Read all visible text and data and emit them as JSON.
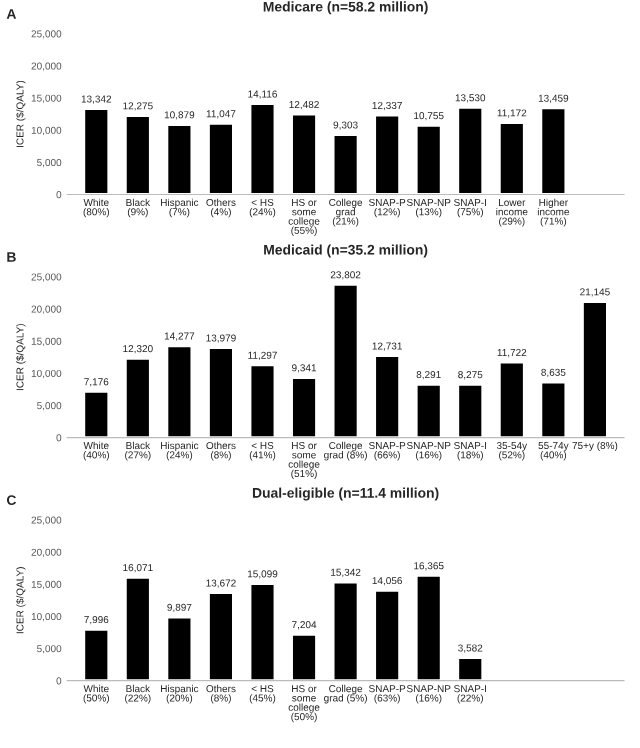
{
  "chart_data": [
    {
      "type": "bar",
      "title": "Medicare (n=58.2 million)",
      "ylabel": "ICER ($/QALY)",
      "annotations": [
        "A"
      ],
      "categories": [
        "White\n(80%)",
        "Black\n(9%)",
        "Hispanic\n(7%)",
        "Others\n(4%)",
        "< HS\n(24%)",
        "HS or\nsome\ncollege\n(55%)",
        "College\ngrad\n(21%)",
        "SNAP-P\n(12%)",
        "SNAP-NP\n(13%)",
        "SNAP-I\n(75%)",
        "Lower\nincome\n(29%)",
        "Higher\nincome\n(71%)"
      ],
      "values": [
        13342,
        12275,
        10879,
        11047,
        14116,
        12482,
        9303,
        12337,
        10755,
        13530,
        11172,
        13459
      ],
      "value_labels": [
        "13,342",
        "12,275",
        "10,879",
        "11,047",
        "14,116",
        "12,482",
        "9,303",
        "12,337",
        "10,755",
        "13,530",
        "11,172",
        "13,459"
      ],
      "color": "#000000",
      "ylim": [
        0,
        25000
      ],
      "yticks": [
        0,
        {
          "value": 5000,
          "label": "5,000"
        },
        {
          "value": 10000,
          "label": "10,000"
        },
        {
          "value": 15000,
          "label": "15,000"
        },
        {
          "value": 20000,
          "label": "20,000"
        },
        {
          "value": 25000,
          "label": "25,000"
        }
      ],
      "grid": false,
      "legend": false
    },
    {
      "type": "bar",
      "title": "Medicaid (n=35.2 million)",
      "ylabel": "ICER ($/QALY)",
      "annotations": [
        "B"
      ],
      "categories": [
        "White\n(40%)",
        "Black\n(27%)",
        "Hispanic\n(24%)",
        "Others\n(8%)",
        "< HS\n(41%)",
        "HS or\nsome\ncollege\n(51%)",
        "College\ngrad (8%)",
        "SNAP-P\n(66%)",
        "SNAP-NP\n(16%)",
        "SNAP-I\n(18%)",
        "35-54y\n(52%)",
        "55-74y\n(40%)",
        "75+y (8%)"
      ],
      "values": [
        7176,
        12320,
        14277,
        13979,
        11297,
        9341,
        23802,
        12731,
        8291,
        8275,
        11722,
        8635,
        21145
      ],
      "value_labels": [
        "7,176",
        "12,320",
        "14,277",
        "13,979",
        "11,297",
        "9,341",
        "23,802",
        "12,731",
        "8,291",
        "8,275",
        "11,722",
        "8,635",
        "21,145"
      ],
      "color": "#000000",
      "ylim": [
        0,
        25000
      ],
      "yticks": [
        0,
        {
          "value": 5000,
          "label": "5,000"
        },
        {
          "value": 10000,
          "label": "10,000"
        },
        {
          "value": 15000,
          "label": "15,000"
        },
        {
          "value": 20000,
          "label": "20,000"
        },
        {
          "value": 25000,
          "label": "25,000"
        }
      ],
      "grid": false,
      "legend": false
    },
    {
      "type": "bar",
      "title": "Dual-eligible (n=11.4 million)",
      "ylabel": "ICER ($/QALY)",
      "annotations": [
        "C"
      ],
      "categories": [
        "White\n(50%)",
        "Black\n(22%)",
        "Hispanic\n(20%)",
        "Others\n(8%)",
        "< HS\n(45%)",
        "HS or\nsome\ncollege\n(50%)",
        "College\ngrad (5%)",
        "SNAP-P\n(63%)",
        "SNAP-NP\n(16%)",
        "SNAP-I\n(22%)"
      ],
      "values": [
        7996,
        16071,
        9897,
        13672,
        15099,
        7204,
        15342,
        14056,
        16365,
        3582
      ],
      "value_labels": [
        "7,996",
        "16,071",
        "9,897",
        "13,672",
        "15,099",
        "7,204",
        "15,342",
        "14,056",
        "16,365",
        "3,582"
      ],
      "color": "#000000",
      "ylim": [
        0,
        25000
      ],
      "yticks": [
        0,
        {
          "value": 5000,
          "label": "5,000"
        },
        {
          "value": 10000,
          "label": "10,000"
        },
        {
          "value": 15000,
          "label": "15,000"
        },
        {
          "value": 20000,
          "label": "20,000"
        },
        {
          "value": 25000,
          "label": "25,000"
        }
      ],
      "grid": false,
      "legend": false
    }
  ]
}
